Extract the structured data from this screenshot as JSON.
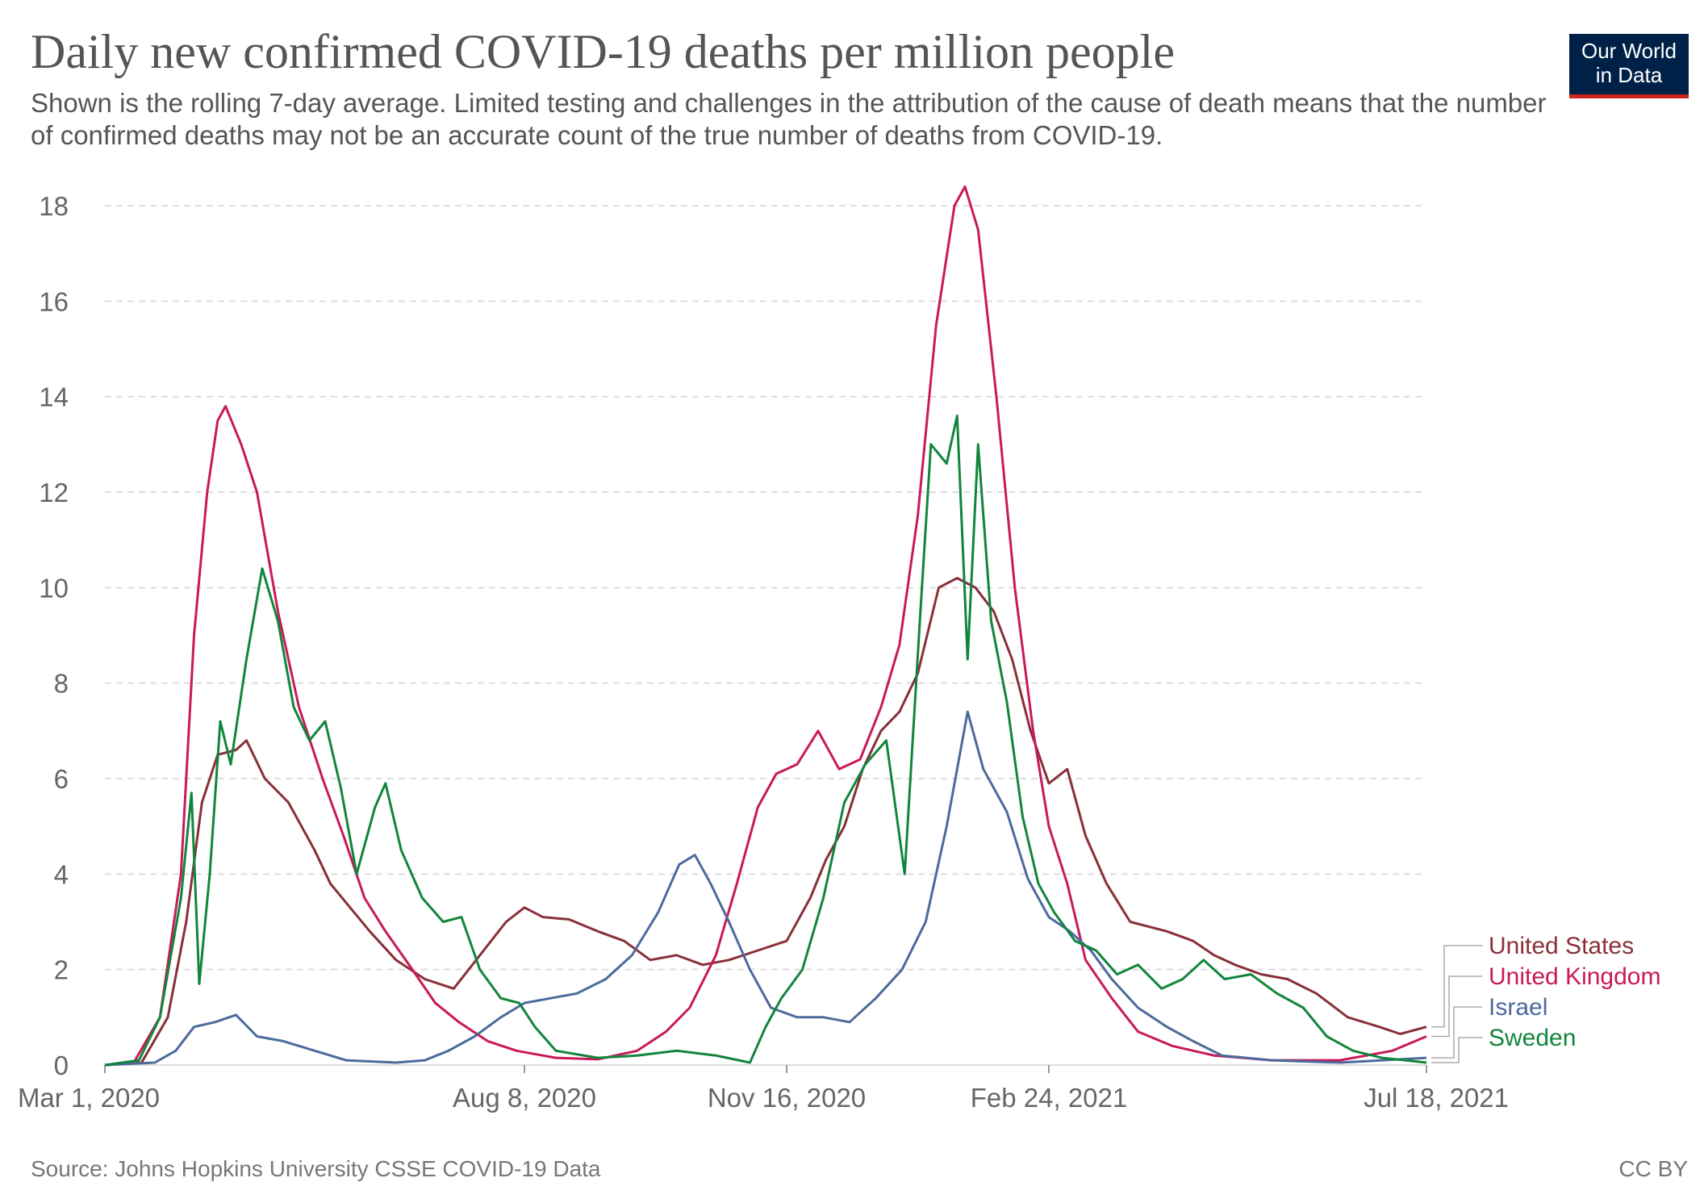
{
  "header": {
    "title": "Daily new confirmed COVID-19 deaths per million people",
    "subtitle": "Shown is the rolling 7-day average. Limited testing and challenges in the attribution of the cause of death means that the number of confirmed deaths may not be an accurate count of the true number of deaths from COVID-19.",
    "logo_line1": "Our World",
    "logo_line2": "in Data"
  },
  "footer": {
    "source": "Source: Johns Hopkins University CSSE COVID-19 Data",
    "license": "CC BY"
  },
  "colors": {
    "background": "#ffffff",
    "grid": "#dddddd",
    "text": "#555555",
    "logo_bg": "#002147",
    "logo_bar": "#ce261e"
  },
  "chart_data": {
    "type": "line",
    "x_type": "date",
    "xlim": [
      "2020-03-01",
      "2021-07-18"
    ],
    "ylim": [
      0,
      18
    ],
    "yticks": [
      0,
      2,
      4,
      6,
      8,
      10,
      12,
      14,
      16,
      18
    ],
    "xticks": [
      {
        "date": "2020-03-01",
        "label": "Mar 1, 2020"
      },
      {
        "date": "2020-08-08",
        "label": "Aug 8, 2020"
      },
      {
        "date": "2020-11-16",
        "label": "Nov 16, 2020"
      },
      {
        "date": "2021-02-24",
        "label": "Feb 24, 2021"
      },
      {
        "date": "2021-07-18",
        "label": "Jul 18, 2021"
      }
    ],
    "grid": "horizontal-dashed",
    "legend": "right-end-labels",
    "series": [
      {
        "name": "United States",
        "color": "#883039",
        "points": [
          [
            "2020-03-01",
            0
          ],
          [
            "2020-03-15",
            0.05
          ],
          [
            "2020-03-25",
            1.0
          ],
          [
            "2020-04-01",
            3.0
          ],
          [
            "2020-04-07",
            5.5
          ],
          [
            "2020-04-13",
            6.5
          ],
          [
            "2020-04-20",
            6.6
          ],
          [
            "2020-04-24",
            6.8
          ],
          [
            "2020-05-01",
            6.0
          ],
          [
            "2020-05-10",
            5.5
          ],
          [
            "2020-05-20",
            4.5
          ],
          [
            "2020-05-26",
            3.8
          ],
          [
            "2020-06-01",
            3.4
          ],
          [
            "2020-06-10",
            2.8
          ],
          [
            "2020-06-20",
            2.2
          ],
          [
            "2020-07-01",
            1.8
          ],
          [
            "2020-07-12",
            1.6
          ],
          [
            "2020-07-22",
            2.3
          ],
          [
            "2020-08-01",
            3.0
          ],
          [
            "2020-08-08",
            3.3
          ],
          [
            "2020-08-15",
            3.1
          ],
          [
            "2020-08-25",
            3.05
          ],
          [
            "2020-09-05",
            2.8
          ],
          [
            "2020-09-15",
            2.6
          ],
          [
            "2020-09-25",
            2.2
          ],
          [
            "2020-10-05",
            2.3
          ],
          [
            "2020-10-15",
            2.1
          ],
          [
            "2020-10-25",
            2.2
          ],
          [
            "2020-11-05",
            2.4
          ],
          [
            "2020-11-16",
            2.6
          ],
          [
            "2020-11-25",
            3.5
          ],
          [
            "2020-12-01",
            4.3
          ],
          [
            "2020-12-08",
            5.0
          ],
          [
            "2020-12-15",
            6.2
          ],
          [
            "2020-12-22",
            7.0
          ],
          [
            "2020-12-29",
            7.4
          ],
          [
            "2021-01-05",
            8.2
          ],
          [
            "2021-01-13",
            10.0
          ],
          [
            "2021-01-20",
            10.2
          ],
          [
            "2021-01-27",
            10.0
          ],
          [
            "2021-02-03",
            9.5
          ],
          [
            "2021-02-10",
            8.5
          ],
          [
            "2021-02-17",
            7.0
          ],
          [
            "2021-02-24",
            5.9
          ],
          [
            "2021-03-03",
            6.2
          ],
          [
            "2021-03-10",
            4.8
          ],
          [
            "2021-03-18",
            3.8
          ],
          [
            "2021-03-27",
            3.0
          ],
          [
            "2021-04-10",
            2.8
          ],
          [
            "2021-04-20",
            2.6
          ],
          [
            "2021-04-28",
            2.3
          ],
          [
            "2021-05-06",
            2.1
          ],
          [
            "2021-05-16",
            1.9
          ],
          [
            "2021-05-26",
            1.8
          ],
          [
            "2021-06-06",
            1.5
          ],
          [
            "2021-06-18",
            1.0
          ],
          [
            "2021-06-30",
            0.8
          ],
          [
            "2021-07-08",
            0.65
          ],
          [
            "2021-07-18",
            0.8
          ]
        ]
      },
      {
        "name": "United Kingdom",
        "color": "#c9195a",
        "points": [
          [
            "2020-03-01",
            0
          ],
          [
            "2020-03-12",
            0.05
          ],
          [
            "2020-03-22",
            1.0
          ],
          [
            "2020-03-30",
            4.0
          ],
          [
            "2020-04-04",
            9.0
          ],
          [
            "2020-04-09",
            12.0
          ],
          [
            "2020-04-13",
            13.5
          ],
          [
            "2020-04-16",
            13.8
          ],
          [
            "2020-04-22",
            13.0
          ],
          [
            "2020-04-28",
            12.0
          ],
          [
            "2020-05-06",
            9.5
          ],
          [
            "2020-05-14",
            7.5
          ],
          [
            "2020-05-23",
            6.0
          ],
          [
            "2020-05-31",
            4.8
          ],
          [
            "2020-06-08",
            3.5
          ],
          [
            "2020-06-16",
            2.8
          ],
          [
            "2020-06-25",
            2.1
          ],
          [
            "2020-07-05",
            1.3
          ],
          [
            "2020-07-14",
            0.9
          ],
          [
            "2020-07-25",
            0.5
          ],
          [
            "2020-08-05",
            0.3
          ],
          [
            "2020-08-20",
            0.15
          ],
          [
            "2020-09-05",
            0.12
          ],
          [
            "2020-09-20",
            0.3
          ],
          [
            "2020-10-01",
            0.7
          ],
          [
            "2020-10-10",
            1.2
          ],
          [
            "2020-10-20",
            2.3
          ],
          [
            "2020-10-28",
            3.8
          ],
          [
            "2020-11-05",
            5.4
          ],
          [
            "2020-11-12",
            6.1
          ],
          [
            "2020-11-20",
            6.3
          ],
          [
            "2020-11-28",
            7.0
          ],
          [
            "2020-12-06",
            6.2
          ],
          [
            "2020-12-14",
            6.4
          ],
          [
            "2020-12-22",
            7.5
          ],
          [
            "2020-12-29",
            8.8
          ],
          [
            "2021-01-05",
            11.5
          ],
          [
            "2021-01-12",
            15.5
          ],
          [
            "2021-01-19",
            18.0
          ],
          [
            "2021-01-23",
            18.4
          ],
          [
            "2021-01-28",
            17.5
          ],
          [
            "2021-02-04",
            14.0
          ],
          [
            "2021-02-11",
            10.0
          ],
          [
            "2021-02-18",
            7.0
          ],
          [
            "2021-02-24",
            5.0
          ],
          [
            "2021-03-03",
            3.8
          ],
          [
            "2021-03-10",
            2.2
          ],
          [
            "2021-03-20",
            1.4
          ],
          [
            "2021-03-30",
            0.7
          ],
          [
            "2021-04-12",
            0.4
          ],
          [
            "2021-04-28",
            0.2
          ],
          [
            "2021-05-20",
            0.1
          ],
          [
            "2021-06-15",
            0.1
          ],
          [
            "2021-07-05",
            0.3
          ],
          [
            "2021-07-18",
            0.6
          ]
        ]
      },
      {
        "name": "Israel",
        "color": "#4c6a9c",
        "points": [
          [
            "2020-03-01",
            0
          ],
          [
            "2020-03-20",
            0.05
          ],
          [
            "2020-03-28",
            0.3
          ],
          [
            "2020-04-04",
            0.8
          ],
          [
            "2020-04-12",
            0.9
          ],
          [
            "2020-04-20",
            1.05
          ],
          [
            "2020-04-28",
            0.6
          ],
          [
            "2020-05-08",
            0.5
          ],
          [
            "2020-05-20",
            0.3
          ],
          [
            "2020-06-01",
            0.1
          ],
          [
            "2020-06-20",
            0.05
          ],
          [
            "2020-07-01",
            0.1
          ],
          [
            "2020-07-10",
            0.3
          ],
          [
            "2020-07-20",
            0.6
          ],
          [
            "2020-07-30",
            1.0
          ],
          [
            "2020-08-08",
            1.3
          ],
          [
            "2020-08-18",
            1.4
          ],
          [
            "2020-08-28",
            1.5
          ],
          [
            "2020-09-08",
            1.8
          ],
          [
            "2020-09-18",
            2.3
          ],
          [
            "2020-09-28",
            3.2
          ],
          [
            "2020-10-06",
            4.2
          ],
          [
            "2020-10-12",
            4.4
          ],
          [
            "2020-10-18",
            3.8
          ],
          [
            "2020-10-25",
            3.0
          ],
          [
            "2020-11-02",
            2.0
          ],
          [
            "2020-11-10",
            1.2
          ],
          [
            "2020-11-20",
            1.0
          ],
          [
            "2020-11-30",
            1.0
          ],
          [
            "2020-12-10",
            0.9
          ],
          [
            "2020-12-20",
            1.4
          ],
          [
            "2020-12-30",
            2.0
          ],
          [
            "2021-01-08",
            3.0
          ],
          [
            "2021-01-16",
            5.0
          ],
          [
            "2021-01-24",
            7.4
          ],
          [
            "2021-01-30",
            6.2
          ],
          [
            "2021-02-08",
            5.3
          ],
          [
            "2021-02-16",
            3.9
          ],
          [
            "2021-02-24",
            3.1
          ],
          [
            "2021-03-04",
            2.8
          ],
          [
            "2021-03-12",
            2.4
          ],
          [
            "2021-03-20",
            1.8
          ],
          [
            "2021-03-30",
            1.2
          ],
          [
            "2021-04-10",
            0.8
          ],
          [
            "2021-04-20",
            0.5
          ],
          [
            "2021-05-01",
            0.2
          ],
          [
            "2021-05-20",
            0.1
          ],
          [
            "2021-06-15",
            0.05
          ],
          [
            "2021-07-18",
            0.15
          ]
        ]
      },
      {
        "name": "Sweden",
        "color": "#12853d",
        "points": [
          [
            "2020-03-01",
            0
          ],
          [
            "2020-03-14",
            0.1
          ],
          [
            "2020-03-22",
            1.0
          ],
          [
            "2020-03-30",
            3.5
          ],
          [
            "2020-04-03",
            5.7
          ],
          [
            "2020-04-06",
            1.7
          ],
          [
            "2020-04-10",
            4.0
          ],
          [
            "2020-04-14",
            7.2
          ],
          [
            "2020-04-18",
            6.3
          ],
          [
            "2020-04-24",
            8.5
          ],
          [
            "2020-04-30",
            10.4
          ],
          [
            "2020-05-06",
            9.3
          ],
          [
            "2020-05-12",
            7.5
          ],
          [
            "2020-05-18",
            6.8
          ],
          [
            "2020-05-24",
            7.2
          ],
          [
            "2020-05-30",
            5.8
          ],
          [
            "2020-06-05",
            4.0
          ],
          [
            "2020-06-12",
            5.4
          ],
          [
            "2020-06-16",
            5.9
          ],
          [
            "2020-06-22",
            4.5
          ],
          [
            "2020-06-30",
            3.5
          ],
          [
            "2020-07-08",
            3.0
          ],
          [
            "2020-07-15",
            3.1
          ],
          [
            "2020-07-22",
            2.0
          ],
          [
            "2020-07-30",
            1.4
          ],
          [
            "2020-08-06",
            1.3
          ],
          [
            "2020-08-12",
            0.8
          ],
          [
            "2020-08-20",
            0.3
          ],
          [
            "2020-09-05",
            0.15
          ],
          [
            "2020-09-20",
            0.2
          ],
          [
            "2020-10-05",
            0.3
          ],
          [
            "2020-10-20",
            0.2
          ],
          [
            "2020-11-02",
            0.05
          ],
          [
            "2020-11-08",
            0.8
          ],
          [
            "2020-11-14",
            1.4
          ],
          [
            "2020-11-22",
            2.0
          ],
          [
            "2020-11-30",
            3.5
          ],
          [
            "2020-12-08",
            5.5
          ],
          [
            "2020-12-16",
            6.3
          ],
          [
            "2020-12-24",
            6.8
          ],
          [
            "2020-12-31",
            4.0
          ],
          [
            "2021-01-06",
            9.5
          ],
          [
            "2021-01-10",
            13.0
          ],
          [
            "2021-01-16",
            12.6
          ],
          [
            "2021-01-20",
            13.6
          ],
          [
            "2021-01-24",
            8.5
          ],
          [
            "2021-01-28",
            13.0
          ],
          [
            "2021-02-02",
            9.3
          ],
          [
            "2021-02-08",
            7.6
          ],
          [
            "2021-02-14",
            5.2
          ],
          [
            "2021-02-20",
            3.8
          ],
          [
            "2021-02-26",
            3.2
          ],
          [
            "2021-03-06",
            2.6
          ],
          [
            "2021-03-14",
            2.4
          ],
          [
            "2021-03-22",
            1.9
          ],
          [
            "2021-03-30",
            2.1
          ],
          [
            "2021-04-08",
            1.6
          ],
          [
            "2021-04-16",
            1.8
          ],
          [
            "2021-04-24",
            2.2
          ],
          [
            "2021-05-02",
            1.8
          ],
          [
            "2021-05-12",
            1.9
          ],
          [
            "2021-05-22",
            1.5
          ],
          [
            "2021-06-01",
            1.2
          ],
          [
            "2021-06-10",
            0.6
          ],
          [
            "2021-06-20",
            0.3
          ],
          [
            "2021-07-01",
            0.15
          ],
          [
            "2021-07-10",
            0.1
          ],
          [
            "2021-07-18",
            0.05
          ]
        ]
      }
    ]
  }
}
